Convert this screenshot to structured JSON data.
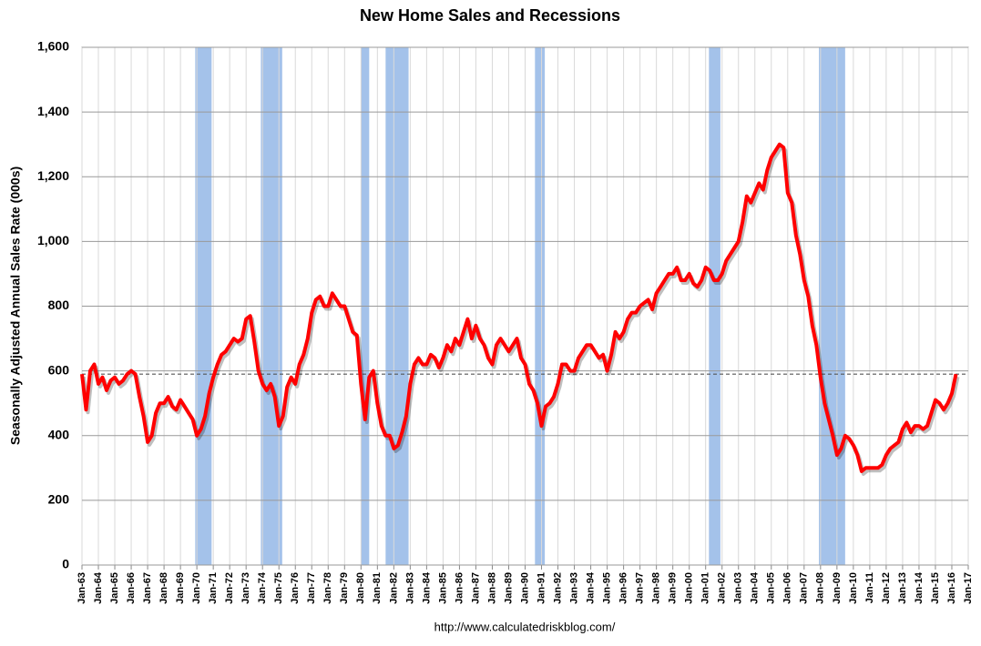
{
  "chart_data": {
    "type": "line",
    "title": "New Home Sales and Recessions",
    "y_label": "Seasonally Adjusted Annual Sales Rate (000s)",
    "source": "http://www.calculatedriskblog.com/",
    "series": [
      {
        "name": "New Home Sales",
        "color": "#ff0000",
        "x": [
          1963,
          1963.25,
          1963.5,
          1963.75,
          1964,
          1964.25,
          1964.5,
          1964.75,
          1965,
          1965.25,
          1965.5,
          1965.75,
          1966,
          1966.25,
          1966.5,
          1966.75,
          1967,
          1967.25,
          1967.5,
          1967.75,
          1968,
          1968.25,
          1968.5,
          1968.75,
          1969,
          1969.25,
          1969.5,
          1969.75,
          1970,
          1970.25,
          1970.5,
          1970.75,
          1971,
          1971.25,
          1971.5,
          1971.75,
          1972,
          1972.25,
          1972.5,
          1972.75,
          1973,
          1973.25,
          1973.5,
          1973.75,
          1974,
          1974.25,
          1974.5,
          1974.75,
          1975,
          1975.25,
          1975.5,
          1975.75,
          1976,
          1976.25,
          1976.5,
          1976.75,
          1977,
          1977.25,
          1977.5,
          1977.75,
          1978,
          1978.25,
          1978.5,
          1978.75,
          1979,
          1979.25,
          1979.5,
          1979.75,
          1980,
          1980.25,
          1980.5,
          1980.75,
          1981,
          1981.25,
          1981.5,
          1981.75,
          1982,
          1982.25,
          1982.5,
          1982.75,
          1983,
          1983.25,
          1983.5,
          1983.75,
          1984,
          1984.25,
          1984.5,
          1984.75,
          1985,
          1985.25,
          1985.5,
          1985.75,
          1986,
          1986.25,
          1986.5,
          1986.75,
          1987,
          1987.25,
          1987.5,
          1987.75,
          1988,
          1988.25,
          1988.5,
          1988.75,
          1989,
          1989.25,
          1989.5,
          1989.75,
          1990,
          1990.25,
          1990.5,
          1990.75,
          1991,
          1991.25,
          1991.5,
          1991.75,
          1992,
          1992.25,
          1992.5,
          1992.75,
          1993,
          1993.25,
          1993.5,
          1993.75,
          1994,
          1994.25,
          1994.5,
          1994.75,
          1995,
          1995.25,
          1995.5,
          1995.75,
          1996,
          1996.25,
          1996.5,
          1996.75,
          1997,
          1997.25,
          1997.5,
          1997.75,
          1998,
          1998.25,
          1998.5,
          1998.75,
          1999,
          1999.25,
          1999.5,
          1999.75,
          2000,
          2000.25,
          2000.5,
          2000.75,
          2001,
          2001.25,
          2001.5,
          2001.75,
          2002,
          2002.25,
          2002.5,
          2002.75,
          2003,
          2003.25,
          2003.5,
          2003.75,
          2004,
          2004.25,
          2004.5,
          2004.75,
          2005,
          2005.25,
          2005.5,
          2005.75,
          2006,
          2006.25,
          2006.5,
          2006.75,
          2007,
          2007.25,
          2007.5,
          2007.75,
          2008,
          2008.25,
          2008.5,
          2008.75,
          2009,
          2009.25,
          2009.5,
          2009.75,
          2010,
          2010.25,
          2010.5,
          2010.75,
          2011,
          2011.25,
          2011.5,
          2011.75,
          2012,
          2012.25,
          2012.5,
          2012.75,
          2013,
          2013.25,
          2013.5,
          2013.75,
          2014,
          2014.25,
          2014.5,
          2014.75,
          2015,
          2015.25,
          2015.5,
          2015.75,
          2016,
          2016.25
        ],
        "values": [
          590,
          480,
          600,
          620,
          560,
          580,
          540,
          570,
          580,
          560,
          570,
          590,
          600,
          590,
          520,
          460,
          380,
          400,
          470,
          500,
          500,
          520,
          490,
          480,
          510,
          490,
          470,
          450,
          400,
          420,
          460,
          530,
          580,
          620,
          650,
          660,
          680,
          700,
          690,
          700,
          760,
          770,
          690,
          600,
          560,
          540,
          560,
          520,
          430,
          460,
          550,
          580,
          560,
          620,
          650,
          700,
          780,
          820,
          830,
          800,
          800,
          840,
          820,
          800,
          800,
          760,
          720,
          710,
          560,
          450,
          580,
          600,
          500,
          430,
          400,
          400,
          360,
          370,
          410,
          460,
          560,
          620,
          640,
          620,
          620,
          650,
          640,
          610,
          640,
          680,
          660,
          700,
          680,
          720,
          760,
          700,
          740,
          700,
          680,
          640,
          620,
          680,
          700,
          680,
          660,
          680,
          700,
          640,
          620,
          560,
          540,
          500,
          430,
          490,
          500,
          520,
          560,
          620,
          620,
          600,
          600,
          640,
          660,
          680,
          680,
          660,
          640,
          650,
          600,
          650,
          720,
          700,
          720,
          760,
          780,
          780,
          800,
          810,
          820,
          790,
          840,
          860,
          880,
          900,
          900,
          920,
          880,
          880,
          900,
          870,
          860,
          880,
          920,
          910,
          880,
          880,
          900,
          940,
          960,
          980,
          1000,
          1060,
          1140,
          1120,
          1150,
          1180,
          1160,
          1220,
          1260,
          1280,
          1300,
          1290,
          1150,
          1120,
          1020,
          960,
          880,
          830,
          740,
          680,
          580,
          500,
          450,
          400,
          340,
          360,
          400,
          390,
          370,
          340,
          290,
          300,
          300,
          300,
          300,
          310,
          340,
          360,
          370,
          380,
          420,
          440,
          410,
          430,
          430,
          420,
          430,
          470,
          510,
          500,
          480,
          500,
          530,
          590
        ]
      }
    ],
    "recessions": [
      [
        1969.9,
        1970.9
      ],
      [
        1973.9,
        1975.2
      ],
      [
        1980.0,
        1980.5
      ],
      [
        1981.5,
        1982.9
      ],
      [
        1990.6,
        1991.2
      ],
      [
        2001.2,
        2001.9
      ],
      [
        2007.9,
        2009.5
      ]
    ],
    "recession_color": "#a4c2ea",
    "reference_line": 590,
    "xlim": [
      1963,
      2017
    ],
    "ylim": [
      0,
      1600
    ],
    "yticks": [
      0,
      200,
      400,
      600,
      800,
      {
        "value": 1000,
        "label": "1,000"
      },
      {
        "value": 1200,
        "label": "1,200"
      },
      {
        "value": 1400,
        "label": "1,400"
      },
      {
        "value": 1600,
        "label": "1,600"
      }
    ],
    "xticks": [
      {
        "value": 1963,
        "label": "Jan-63"
      },
      {
        "value": 1964,
        "label": "Jan-64"
      },
      {
        "value": 1965,
        "label": "Jan-65"
      },
      {
        "value": 1966,
        "label": "Jan-66"
      },
      {
        "value": 1967,
        "label": "Jan-67"
      },
      {
        "value": 1968,
        "label": "Jan-68"
      },
      {
        "value": 1969,
        "label": "Jan-69"
      },
      {
        "value": 1970,
        "label": "Jan-70"
      },
      {
        "value": 1971,
        "label": "Jan-71"
      },
      {
        "value": 1972,
        "label": "Jan-72"
      },
      {
        "value": 1973,
        "label": "Jan-73"
      },
      {
        "value": 1974,
        "label": "Jan-74"
      },
      {
        "value": 1975,
        "label": "Jan-75"
      },
      {
        "value": 1976,
        "label": "Jan-76"
      },
      {
        "value": 1977,
        "label": "Jan-77"
      },
      {
        "value": 1978,
        "label": "Jan-78"
      },
      {
        "value": 1979,
        "label": "Jan-79"
      },
      {
        "value": 1980,
        "label": "Jan-80"
      },
      {
        "value": 1981,
        "label": "Jan-81"
      },
      {
        "value": 1982,
        "label": "Jan-82"
      },
      {
        "value": 1983,
        "label": "Jan-83"
      },
      {
        "value": 1984,
        "label": "Jan-84"
      },
      {
        "value": 1985,
        "label": "Jan-85"
      },
      {
        "value": 1986,
        "label": "Jan-86"
      },
      {
        "value": 1987,
        "label": "Jan-87"
      },
      {
        "value": 1988,
        "label": "Jan-88"
      },
      {
        "value": 1989,
        "label": "Jan-89"
      },
      {
        "value": 1990,
        "label": "Jan-90"
      },
      {
        "value": 1991,
        "label": "Jan-91"
      },
      {
        "value": 1992,
        "label": "Jan-92"
      },
      {
        "value": 1993,
        "label": "Jan-93"
      },
      {
        "value": 1994,
        "label": "Jan-94"
      },
      {
        "value": 1995,
        "label": "Jan-95"
      },
      {
        "value": 1996,
        "label": "Jan-96"
      },
      {
        "value": 1997,
        "label": "Jan-97"
      },
      {
        "value": 1998,
        "label": "Jan-98"
      },
      {
        "value": 1999,
        "label": "Jan-99"
      },
      {
        "value": 2000,
        "label": "Jan-00"
      },
      {
        "value": 2001,
        "label": "Jan-01"
      },
      {
        "value": 2002,
        "label": "Jan-02"
      },
      {
        "value": 2003,
        "label": "Jan-03"
      },
      {
        "value": 2004,
        "label": "Jan-04"
      },
      {
        "value": 2005,
        "label": "Jan-05"
      },
      {
        "value": 2006,
        "label": "Jan-06"
      },
      {
        "value": 2007,
        "label": "Jan-07"
      },
      {
        "value": 2008,
        "label": "Jan-08"
      },
      {
        "value": 2009,
        "label": "Jan-09"
      },
      {
        "value": 2010,
        "label": "Jan-10"
      },
      {
        "value": 2011,
        "label": "Jan-11"
      },
      {
        "value": 2012,
        "label": "Jan-12"
      },
      {
        "value": 2013,
        "label": "Jan-13"
      },
      {
        "value": 2014,
        "label": "Jan-14"
      },
      {
        "value": 2015,
        "label": "Jan-15"
      },
      {
        "value": 2016,
        "label": "Jan-16"
      },
      {
        "value": 2017,
        "label": "Jan-17"
      }
    ],
    "grid": true
  }
}
